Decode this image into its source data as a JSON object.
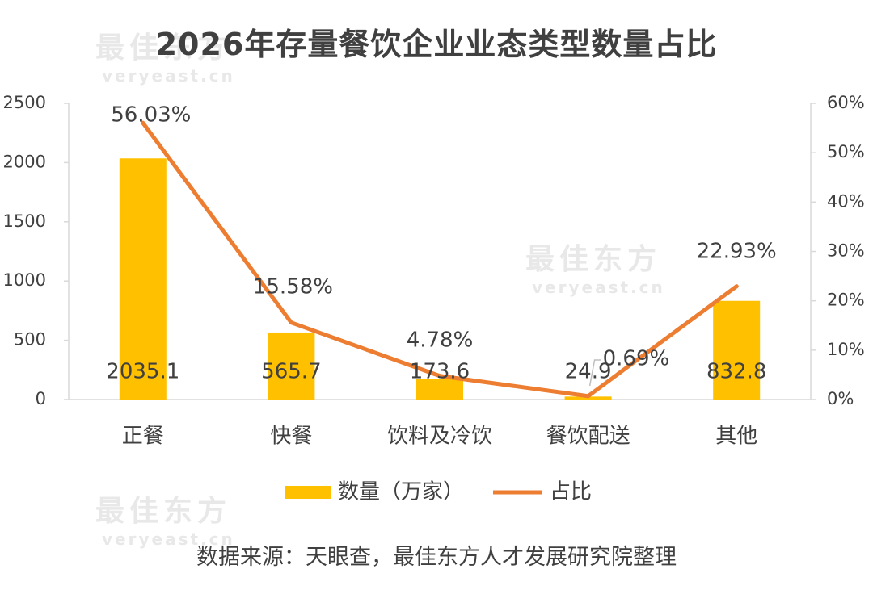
{
  "title": "2026年存量餐饮企业业态类型数量占比",
  "source": "数据来源：天眼查，最佳东方人才发展研究院整理",
  "watermark": {
    "brand": "最佳东方",
    "domain": "veryeast.cn"
  },
  "colors": {
    "bar": "#FFC000",
    "line": "#ED7D31",
    "text": "#404040",
    "axis": "#D9D9D9"
  },
  "chart_data": {
    "type": "bar",
    "title": "2026年存量餐饮企业业态类型数量占比",
    "categories": [
      "正餐",
      "快餐",
      "饮料及冷饮",
      "餐饮配送",
      "其他"
    ],
    "series": [
      {
        "name": "数量（万家）",
        "type": "bar",
        "axis": "left",
        "values": [
          2035.1,
          565.7,
          173.6,
          24.9,
          832.8
        ],
        "labels": [
          "2035.1",
          "565.7",
          "173.6",
          "24.9",
          "832.8"
        ]
      },
      {
        "name": "占比",
        "type": "line",
        "axis": "right",
        "values": [
          56.03,
          15.58,
          4.78,
          0.69,
          22.93
        ],
        "labels": [
          "56.03%",
          "15.58%",
          "4.78%",
          "0.69%",
          "22.93%"
        ]
      }
    ],
    "y_left": {
      "min": 0,
      "max": 2500,
      "ticks": [
        "0",
        "500",
        "1000",
        "1500",
        "2000",
        "2500"
      ]
    },
    "y_right": {
      "min": 0,
      "max": 60,
      "ticks": [
        "0%",
        "10%",
        "20%",
        "30%",
        "40%",
        "50%",
        "60%"
      ]
    },
    "legend": "bottom",
    "grid": false
  }
}
